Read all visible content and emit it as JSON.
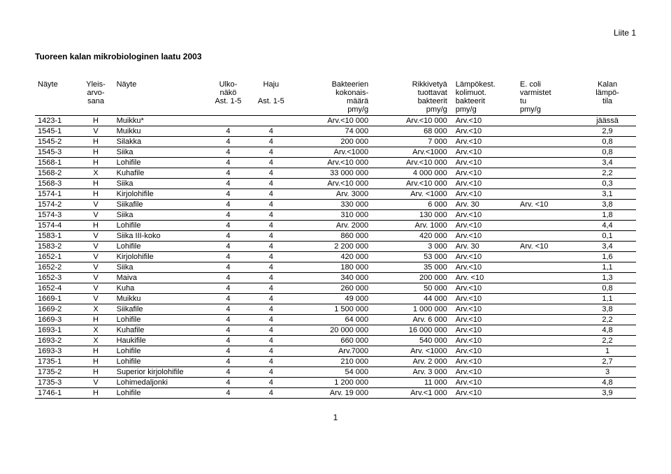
{
  "liite": "Liite 1",
  "title": "Tuoreen kalan mikrobiologinen laatu 2003",
  "columns": {
    "nayte": "Näyte",
    "yleis": "Yleis-arvo-\nsana",
    "nayte2": "Näyte",
    "ulko": "Ulko-\nnäkö\nAst. 1-5",
    "haju": "Haju\n\nAst. 1-5",
    "bakt": "Bakteerien\nkokonais-\nmäärä\npmy/g",
    "rikki": "Rikkivetyä\ntuottavat\nbakteerit\npmy/g",
    "lampo": "Lämpökest.\nkolimuot.\nbakteerit\npmy/g",
    "ecoli": "E. coli\nvarmistet\ntu\npmy/g",
    "kalan": "Kalan\nlämpö-\ntila"
  },
  "rows": [
    [
      "1423-1",
      "H",
      "Muikku*",
      "",
      "",
      "Arv.<10 000",
      "Arv.<10 000",
      "Arv.<10",
      "",
      "jäässä"
    ],
    [
      "1545-1",
      "V",
      "Muikku",
      "4",
      "4",
      "74 000",
      "68 000",
      "Arv.<10",
      "",
      "2,9"
    ],
    [
      "1545-2",
      "H",
      "Silakka",
      "4",
      "4",
      "200 000",
      "7 000",
      "Arv.<10",
      "",
      "0,8"
    ],
    [
      "1545-3",
      "H",
      "Siika",
      "4",
      "4",
      "Arv.<1000",
      "Arv.<1000",
      "Arv.<10",
      "",
      "0,8"
    ],
    [
      "1568-1",
      "H",
      "Lohifile",
      "4",
      "4",
      "Arv.<10 000",
      "Arv.<10 000",
      "Arv.<10",
      "",
      "3,4"
    ],
    [
      "1568-2",
      "X",
      "Kuhafile",
      "4",
      "4",
      "33 000 000",
      "4 000 000",
      "Arv.<10",
      "",
      "2,2"
    ],
    [
      "1568-3",
      "H",
      "Siika",
      "4",
      "4",
      "Arv.<10 000",
      "Arv.<10 000",
      "Arv.<10",
      "",
      "0,3"
    ],
    [
      "1574-1",
      "H",
      "Kirjolohifile",
      "4",
      "4",
      "Arv. 3000",
      "Arv. <1000",
      "Arv.<10",
      "",
      "3,1"
    ],
    [
      "1574-2",
      "V",
      "Siikafile",
      "4",
      "4",
      "330 000",
      "6 000",
      "Arv. 30",
      "Arv. <10",
      "3,8"
    ],
    [
      "1574-3",
      "V",
      "Siika",
      "4",
      "4",
      "310 000",
      "130 000",
      "Arv.<10",
      "",
      "1,8"
    ],
    [
      "1574-4",
      "H",
      "Lohifile",
      "4",
      "4",
      "Arv. 2000",
      "Arv. 1000",
      "Arv.<10",
      "",
      "4,4"
    ],
    [
      "1583-1",
      "V",
      "Siika III-koko",
      "4",
      "4",
      "860 000",
      "420 000",
      "Arv.<10",
      "",
      "0,1"
    ],
    [
      "1583-2",
      "V",
      "Lohifile",
      "4",
      "4",
      "2 200 000",
      "3 000",
      "Arv. 30",
      "Arv. <10",
      "3,4"
    ],
    [
      "1652-1",
      "V",
      "Kirjolohifile",
      "4",
      "4",
      "420 000",
      "53 000",
      "Arv.<10",
      "",
      "1,6"
    ],
    [
      "1652-2",
      "V",
      "Siika",
      "4",
      "4",
      "180 000",
      "35 000",
      "Arv.<10",
      "",
      "1,1"
    ],
    [
      "1652-3",
      "V",
      "Maiva",
      "4",
      "4",
      "340 000",
      "200 000",
      "Arv. <10",
      "",
      "1,3"
    ],
    [
      "1652-4",
      "V",
      "Kuha",
      "4",
      "4",
      "260 000",
      "50 000",
      "Arv.<10",
      "",
      "0,8"
    ],
    [
      "1669-1",
      "V",
      "Muikku",
      "4",
      "4",
      "49 000",
      "44 000",
      "Arv.<10",
      "",
      "1,1"
    ],
    [
      "1669-2",
      "X",
      "Siikafile",
      "4",
      "4",
      "1 500 000",
      "1 000 000",
      "Arv.<10",
      "",
      "3,8"
    ],
    [
      "1669-3",
      "H",
      "Lohifile",
      "4",
      "4",
      "64 000",
      "Arv. 6 000",
      "Arv.<10",
      "",
      "2,2"
    ],
    [
      "1693-1",
      "X",
      "Kuhafile",
      "4",
      "4",
      "20 000 000",
      "16 000 000",
      "Arv.<10",
      "",
      "4,8"
    ],
    [
      "1693-2",
      "X",
      "Haukifile",
      "4",
      "4",
      "660 000",
      "540 000",
      "Arv.<10",
      "",
      "2,2"
    ],
    [
      "1693-3",
      "H",
      "Lohifile",
      "4",
      "4",
      "Arv.7000",
      "Arv. <1000",
      "Arv.<10",
      "",
      "1"
    ],
    [
      "1735-1",
      "H",
      "Lohifile",
      "4",
      "4",
      "210 000",
      "Arv. 2 000",
      "Arv.<10",
      "",
      "2,7"
    ],
    [
      "1735-2",
      "H",
      "Superior kirjolohifile",
      "4",
      "4",
      "54 000",
      "Arv. 3 000",
      "Arv.<10",
      "",
      "3"
    ],
    [
      "1735-3",
      "V",
      "Lohimedaljonki",
      "4",
      "4",
      "1 200 000",
      "11 000",
      "Arv.<10",
      "",
      "4,8"
    ],
    [
      "1746-1",
      "H",
      "Lohifile",
      "4",
      "4",
      "Arv. 19 000",
      "Arv.<1 000",
      "Arv.<10",
      "",
      "3,9"
    ]
  ],
  "pagenum": "1"
}
